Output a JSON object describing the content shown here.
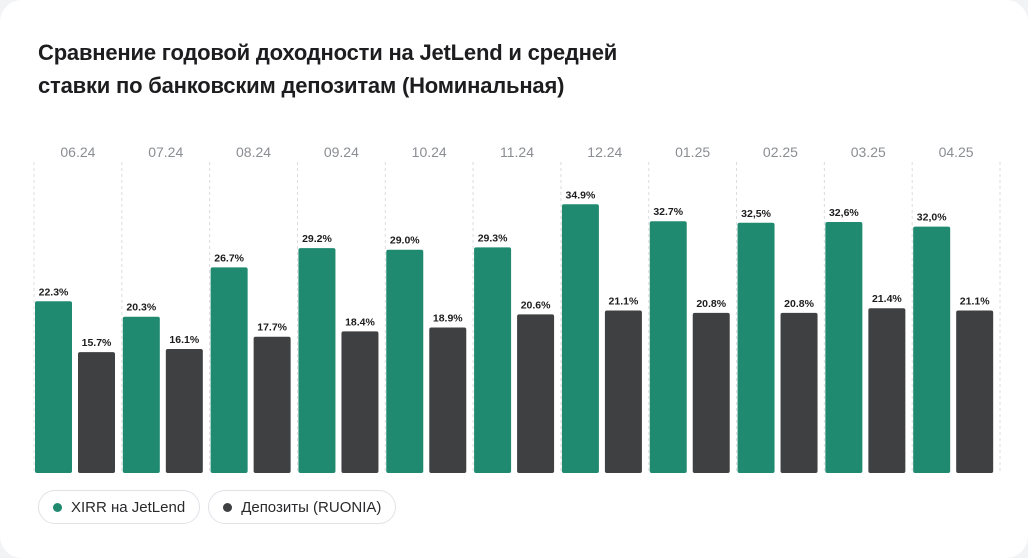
{
  "colors": {
    "jetlend": "#1f8a70",
    "deposits": "#3f4042",
    "gridline": "#d9dcdf",
    "tick_text": "#8a8d92",
    "value_text": "#1d1d1f"
  },
  "chart_data": {
    "type": "bar",
    "title": "Сравнение годовой доходности на JetLend и средней ставки по банковским депозитам (Номинальная)",
    "categories": [
      "06.24",
      "07.24",
      "08.24",
      "09.24",
      "10.24",
      "11.24",
      "12.24",
      "01.25",
      "02.25",
      "03.25",
      "04.25"
    ],
    "series": [
      {
        "name": "XIRR на JetLend",
        "values": [
          22.3,
          20.3,
          26.7,
          29.2,
          29.0,
          29.3,
          34.9,
          32.7,
          32.5,
          32.6,
          32.0
        ],
        "labels": [
          "22.3%",
          "20.3%",
          "26.7%",
          "29.2%",
          "29.0%",
          "29.3%",
          "34.9%",
          "32.7%",
          "32,5%",
          "32,6%",
          "32,0%"
        ]
      },
      {
        "name": "Депозиты (RUONIA)",
        "values": [
          15.7,
          16.1,
          17.7,
          18.4,
          18.9,
          20.6,
          21.1,
          20.8,
          20.8,
          21.4,
          21.1
        ],
        "labels": [
          "15.7%",
          "16.1%",
          "17.7%",
          "18.4%",
          "18.9%",
          "20.6%",
          "21.1%",
          "20.8%",
          "20.8%",
          "21.4%",
          "21.1%"
        ]
      }
    ],
    "ylim": [
      0,
      40
    ],
    "grid": true,
    "legend_position": "bottom-left"
  }
}
